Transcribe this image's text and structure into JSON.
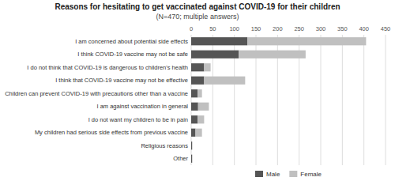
{
  "chart_data": {
    "type": "bar",
    "orientation": "horizontal",
    "stacked": true,
    "title": "Reasons for hesitating to get vaccinated against COVID-19 for their children",
    "subtitle": "(N=470; multiple answers)",
    "categories": [
      "I am concerned about potential side effects",
      "I think COVID-19 vaccine may not be safe",
      "I do not think that COVID-19 is dangerous to children's health",
      "I think that COVID-19 vaccine may not be effective",
      "Children can prevent COVID-19 with precautions other than a vaccine",
      "I am against vaccination in general",
      "I do not want my children to be in pain",
      "My children had serious side effects from previous vaccine",
      "Religious reasons",
      "Other"
    ],
    "series": [
      {
        "name": "Male",
        "color": "#555555",
        "values": [
          130,
          110,
          30,
          30,
          15,
          16,
          15,
          10,
          2,
          2
        ]
      },
      {
        "name": "Female",
        "color": "#c0c0c0",
        "values": [
          275,
          155,
          15,
          95,
          10,
          25,
          15,
          15,
          1,
          1
        ]
      }
    ],
    "xlim": [
      0,
      450
    ],
    "xticks": [
      0,
      50,
      100,
      150,
      200,
      250,
      300,
      350,
      400,
      450
    ],
    "grid": true,
    "legend": "bottom"
  }
}
